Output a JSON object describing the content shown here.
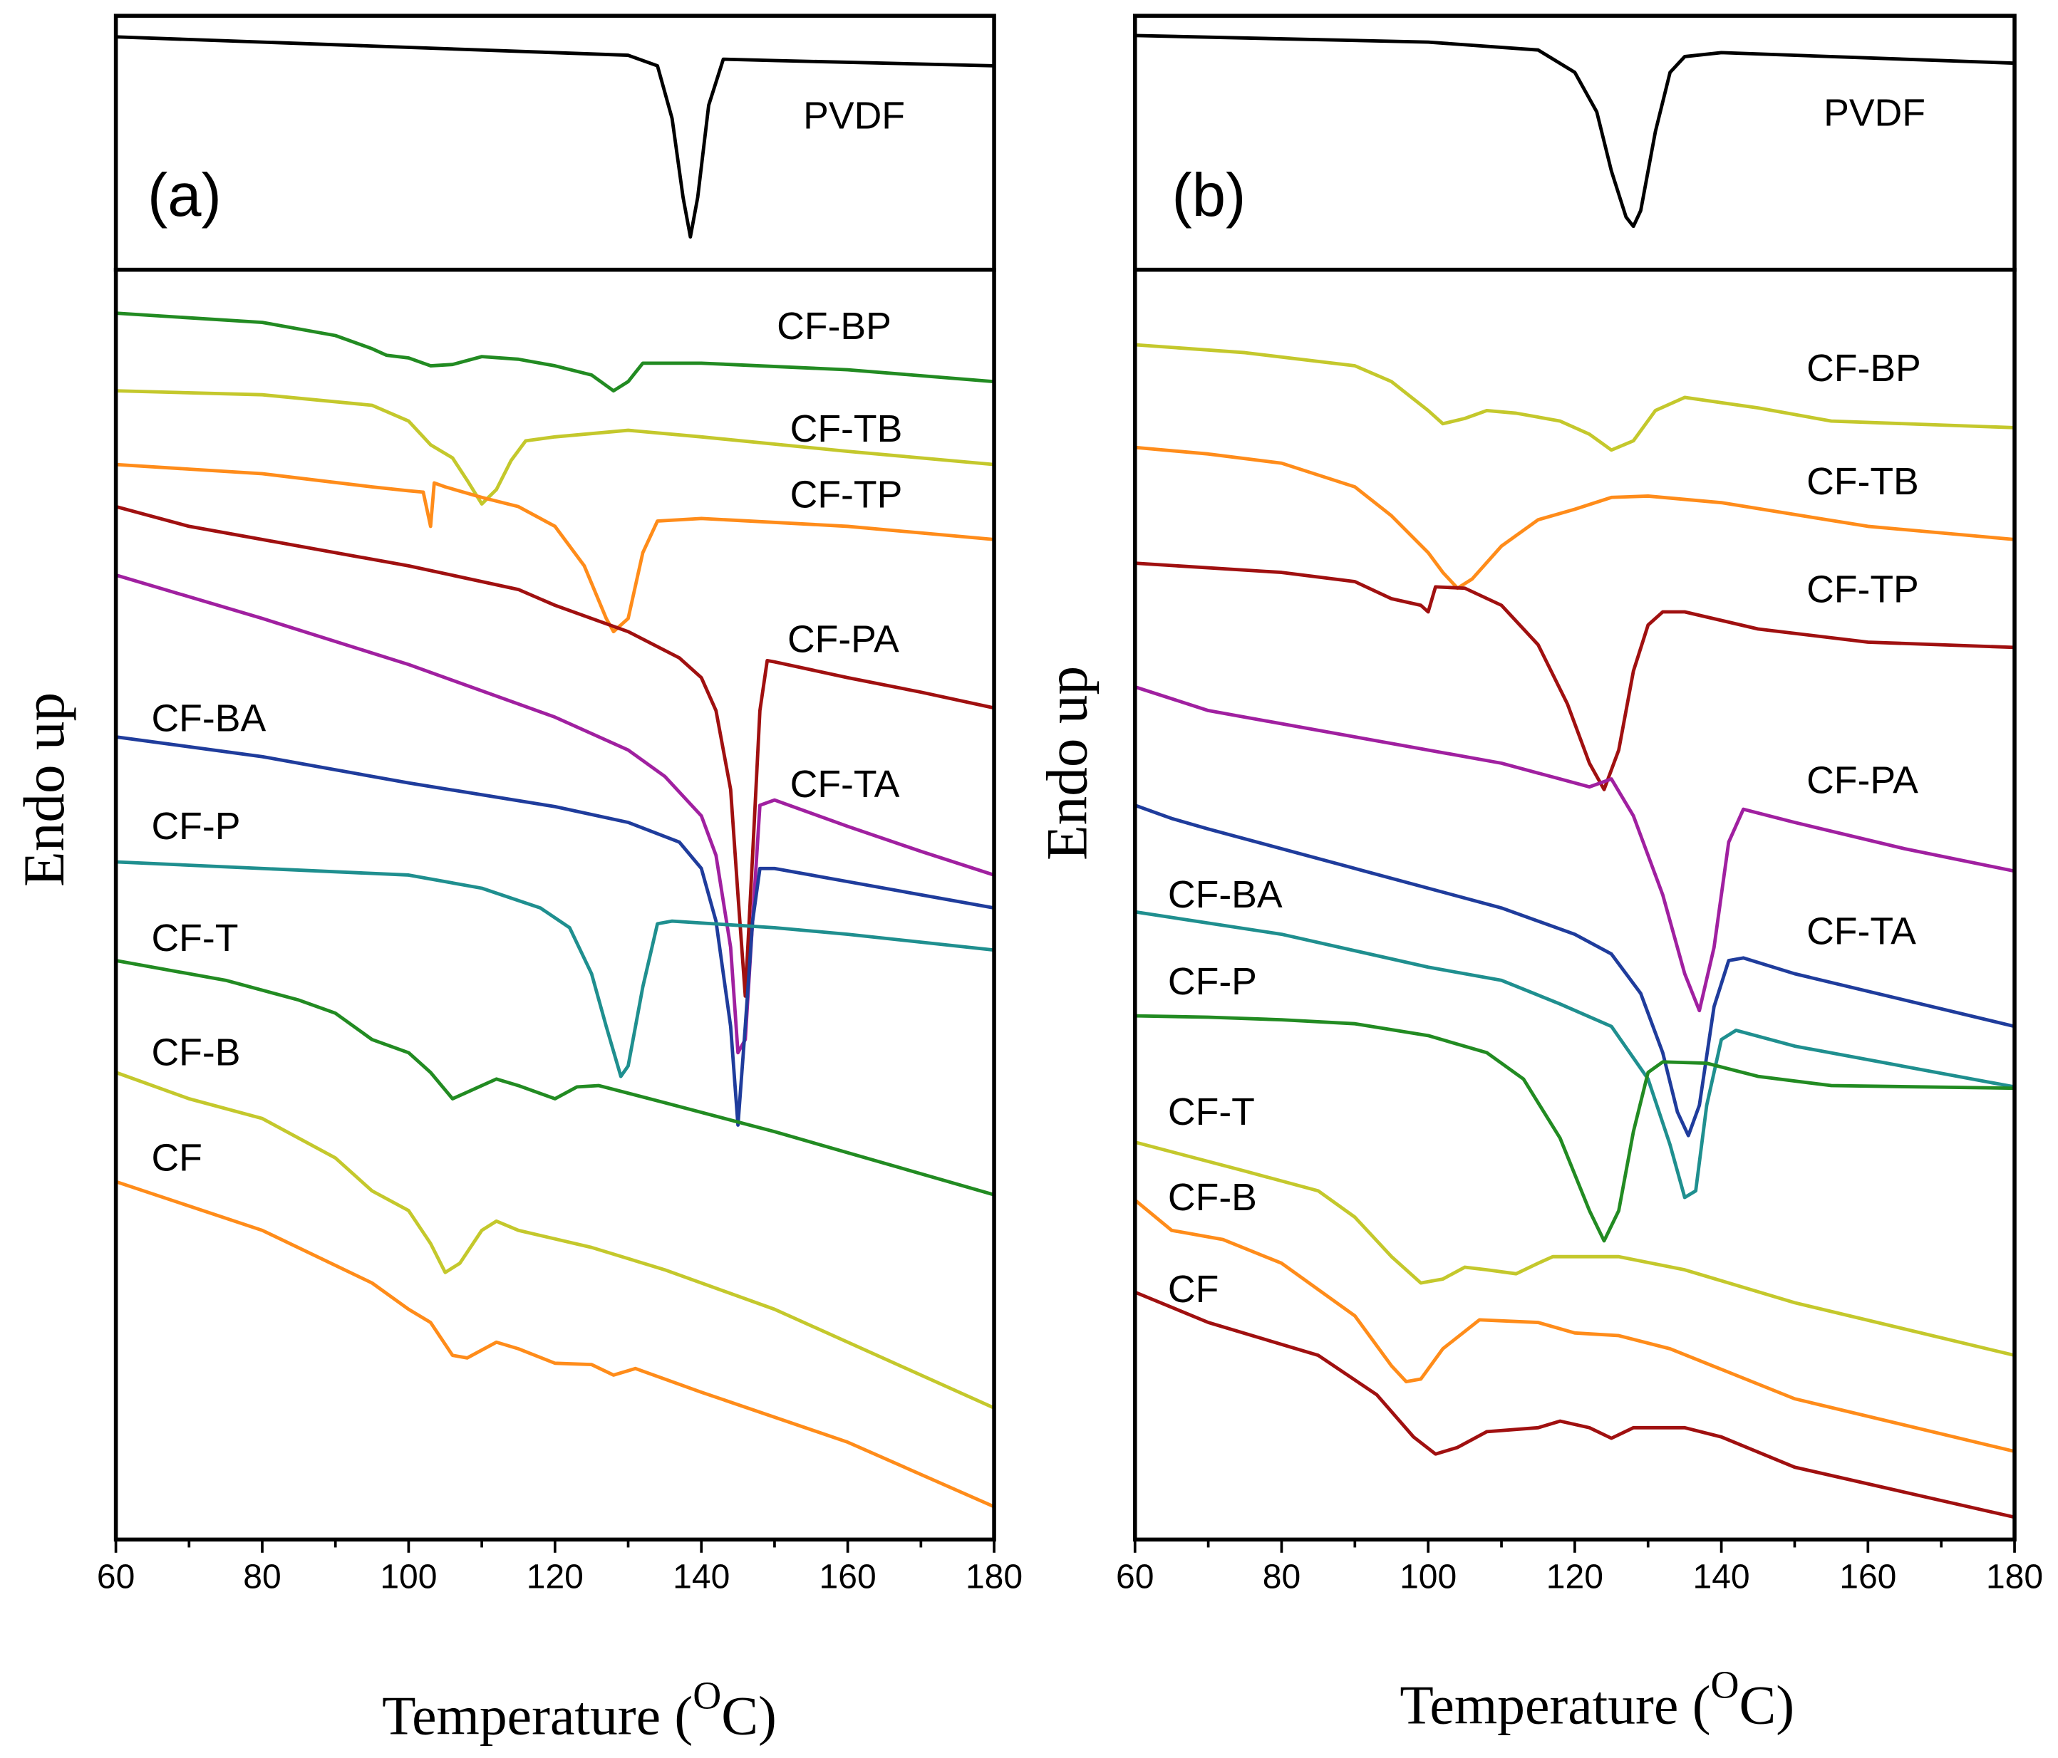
{
  "chart_data": [
    {
      "type": "line",
      "panel_label": "(a)",
      "xlim": [
        60,
        180
      ],
      "ylim": [
        0,
        193
      ],
      "series": [
        {
          "name": "PVDF",
          "color": "#000000",
          "x": [
            60,
            100,
            130,
            134,
            136,
            137.5,
            138.5,
            139.5,
            141,
            143,
            150,
            180
          ],
          "values": [
            177,
            169,
            163,
            155,
            115,
            55,
            25,
            55,
            125,
            160,
            159,
            155
          ]
        }
      ]
    },
    {
      "type": "line",
      "ylabel": "Endo up",
      "xlabel": [
        "Temperature (",
        "O",
        "C)"
      ],
      "xlim": [
        60,
        180
      ],
      "ylim": [
        0,
        965
      ],
      "xticks": [
        60,
        80,
        100,
        120,
        140,
        160,
        180
      ],
      "xminorticks": [
        70,
        90,
        110,
        130,
        150,
        170
      ],
      "series": [
        {
          "name": "CF-BP",
          "color": "#228b22",
          "x": [
            60,
            80,
            90,
            95,
            97,
            100,
            103,
            106,
            110,
            115,
            120,
            125,
            128,
            130,
            132,
            140,
            160,
            180
          ],
          "values": [
            932,
            925,
            915,
            905,
            900,
            898,
            892,
            893,
            899,
            897,
            892,
            885,
            873,
            880,
            894,
            894,
            889,
            880
          ]
        },
        {
          "name": "CF-TB",
          "color": "#c4c82c",
          "x": [
            60,
            80,
            95,
            100,
            103,
            106,
            108,
            110,
            112,
            114,
            116,
            120,
            130,
            140,
            160,
            180
          ],
          "values": [
            873,
            870,
            862,
            850,
            832,
            822,
            805,
            787,
            798,
            820,
            835,
            838,
            843,
            838,
            827,
            817
          ]
        },
        {
          "name": "CF-TP",
          "color": "#ff8c1a",
          "x": [
            60,
            80,
            95,
            100,
            102,
            103,
            103.5,
            105,
            110,
            115,
            120,
            124,
            127,
            128,
            130,
            132,
            134,
            140,
            160,
            180
          ],
          "values": [
            817,
            810,
            800,
            797,
            796,
            770,
            803,
            800,
            792,
            785,
            770,
            740,
            700,
            690,
            700,
            750,
            774,
            776,
            770,
            760
          ]
        },
        {
          "name": "CF-PA",
          "color": "#a01010",
          "x": [
            60,
            70,
            80,
            100,
            110,
            115,
            120,
            130,
            137,
            140,
            142,
            144,
            145,
            146,
            147,
            148,
            149,
            150,
            160,
            170,
            180
          ],
          "values": [
            785,
            770,
            760,
            740,
            728,
            722,
            710,
            690,
            670,
            655,
            630,
            570,
            490,
            413,
            520,
            630,
            668,
            667,
            655,
            644,
            632
          ]
        },
        {
          "name": "CF-TA",
          "color": "#a020a0",
          "x": [
            60,
            80,
            100,
            120,
            130,
            135,
            140,
            142,
            144,
            145,
            146,
            147,
            148,
            150,
            160,
            170,
            180
          ],
          "values": [
            733,
            700,
            665,
            625,
            600,
            580,
            550,
            520,
            450,
            370,
            380,
            470,
            558,
            562,
            542,
            523,
            505
          ]
        },
        {
          "name": "CF-BA",
          "color": "#1f3c9c",
          "x": [
            60,
            80,
            100,
            120,
            130,
            137,
            140,
            142,
            144,
            145,
            146,
            147,
            148,
            150,
            160,
            180
          ],
          "values": [
            610,
            595,
            575,
            557,
            545,
            530,
            510,
            470,
            390,
            315,
            390,
            470,
            510,
            510,
            500,
            480
          ]
        },
        {
          "name": "CF-P",
          "color": "#1f8f8f",
          "x": [
            60,
            80,
            100,
            110,
            118,
            122,
            125,
            127,
            129,
            130,
            132,
            134,
            136,
            150,
            160,
            180
          ],
          "values": [
            515,
            510,
            505,
            495,
            480,
            465,
            430,
            390,
            352,
            360,
            420,
            468,
            470,
            465,
            460,
            448
          ]
        },
        {
          "name": "CF-T",
          "color": "#228b22",
          "x": [
            60,
            75,
            85,
            90,
            95,
            100,
            103,
            106,
            108,
            112,
            115,
            120,
            123,
            126,
            135,
            150,
            180
          ],
          "values": [
            440,
            425,
            410,
            400,
            380,
            370,
            355,
            335,
            340,
            350,
            345,
            335,
            344,
            345,
            332,
            310,
            262
          ]
        },
        {
          "name": "CF-B",
          "color": "#c4c82c",
          "x": [
            60,
            70,
            80,
            90,
            95,
            100,
            103,
            105,
            107,
            110,
            112,
            115,
            125,
            135,
            150,
            180
          ],
          "values": [
            355,
            335,
            320,
            290,
            265,
            250,
            225,
            203,
            210,
            235,
            242,
            235,
            222,
            205,
            175,
            100
          ]
        },
        {
          "name": "CF",
          "color": "#ff8c1a",
          "x": [
            60,
            80,
            95,
            100,
            103,
            106,
            108,
            112,
            115,
            120,
            125,
            128,
            131,
            140,
            160,
            180
          ],
          "values": [
            272,
            235,
            195,
            175,
            165,
            140,
            138,
            150,
            145,
            134,
            133,
            125,
            130,
            112,
            74,
            25
          ]
        }
      ]
    },
    {
      "type": "line",
      "panel_label": "(b)",
      "xlim": [
        60,
        180
      ],
      "ylim": [
        0,
        193
      ],
      "series": [
        {
          "name": "PVDF",
          "color": "#000000",
          "x": [
            60,
            100,
            115,
            120,
            123,
            125,
            127,
            128,
            129,
            131,
            133,
            135,
            140,
            180
          ],
          "values": [
            178,
            173,
            167,
            150,
            120,
            75,
            40,
            33,
            45,
            105,
            150,
            162,
            165,
            157
          ]
        }
      ]
    },
    {
      "type": "line",
      "ylabel": "Endo up",
      "xlabel": [
        "Temperature (",
        "O",
        "C)"
      ],
      "xlim": [
        60,
        180
      ],
      "ylim": [
        0,
        965
      ],
      "xticks": [
        60,
        80,
        100,
        120,
        140,
        160,
        180
      ],
      "xminorticks": [
        70,
        90,
        110,
        130,
        150,
        170
      ],
      "series": [
        {
          "name": "CF-BP",
          "color": "#c4c82c",
          "x": [
            60,
            75,
            90,
            95,
            100,
            102,
            105,
            108,
            112,
            118,
            122,
            125,
            128,
            131,
            135,
            145,
            155,
            180
          ],
          "values": [
            908,
            902,
            892,
            880,
            858,
            848,
            852,
            858,
            856,
            850,
            840,
            828,
            835,
            858,
            868,
            860,
            850,
            845
          ]
        },
        {
          "name": "CF-TB",
          "color": "#ff8c1a",
          "x": [
            60,
            70,
            80,
            90,
            95,
            100,
            102,
            104,
            106,
            110,
            115,
            120,
            125,
            130,
            140,
            160,
            180
          ],
          "values": [
            830,
            825,
            818,
            800,
            778,
            750,
            735,
            723,
            730,
            755,
            775,
            783,
            792,
            793,
            788,
            770,
            760
          ]
        },
        {
          "name": "CF-TP",
          "color": "#a01010",
          "x": [
            60,
            80,
            90,
            95,
            99,
            100,
            101,
            105,
            110,
            115,
            119,
            122,
            124,
            126,
            128,
            130,
            132,
            135,
            145,
            160,
            180
          ],
          "values": [
            742,
            735,
            728,
            715,
            710,
            705,
            724,
            723,
            710,
            680,
            635,
            590,
            570,
            600,
            660,
            695,
            705,
            705,
            692,
            682,
            678
          ]
        },
        {
          "name": "CF-PA",
          "color": "#a020a0",
          "x": [
            60,
            70,
            90,
            110,
            118,
            122,
            125,
            128,
            132,
            135,
            137,
            139,
            141,
            143,
            150,
            165,
            180
          ],
          "values": [
            648,
            630,
            610,
            590,
            578,
            572,
            578,
            550,
            490,
            430,
            402,
            450,
            530,
            555,
            545,
            525,
            508
          ]
        },
        {
          "name": "CF-TA",
          "color": "#1f3c9c",
          "x": [
            60,
            65,
            70,
            90,
            110,
            120,
            125,
            129,
            132,
            134,
            135.5,
            137,
            139,
            141,
            143,
            150,
            180
          ],
          "values": [
            558,
            548,
            540,
            510,
            480,
            460,
            445,
            415,
            370,
            325,
            307,
            330,
            405,
            440,
            442,
            430,
            390
          ]
        },
        {
          "name": "CF-BA",
          "color": "#1f8f8f",
          "x": [
            60,
            80,
            100,
            103,
            110,
            118,
            125,
            130,
            133,
            135,
            136.5,
            138,
            140,
            142,
            150,
            180
          ],
          "values": [
            477,
            460,
            435,
            432,
            425,
            407,
            390,
            350,
            300,
            260,
            265,
            330,
            380,
            387,
            375,
            344
          ]
        },
        {
          "name": "CF-P",
          "color": "#228b22",
          "x": [
            60,
            70,
            80,
            90,
            100,
            108,
            113,
            118,
            122,
            124,
            126,
            128,
            130,
            132,
            138,
            145,
            155,
            180
          ],
          "values": [
            398,
            397,
            395,
            392,
            383,
            370,
            350,
            305,
            250,
            227,
            250,
            310,
            355,
            363,
            362,
            352,
            345,
            343
          ]
        },
        {
          "name": "CF-T",
          "color": "#c4c82c",
          "x": [
            60,
            75,
            85,
            90,
            95,
            99,
            102,
            105,
            108,
            112,
            115,
            117,
            126,
            135,
            150,
            180
          ],
          "values": [
            302,
            280,
            265,
            245,
            215,
            195,
            198,
            207,
            205,
            202,
            210,
            215,
            215,
            205,
            180,
            140
          ]
        },
        {
          "name": "CF-B",
          "color": "#ff8c1a",
          "x": [
            60,
            65,
            72,
            80,
            90,
            95,
            97,
            99,
            102,
            107,
            115,
            120,
            126,
            133,
            150,
            180
          ],
          "values": [
            258,
            235,
            228,
            210,
            170,
            132,
            120,
            122,
            145,
            167,
            165,
            157,
            155,
            145,
            107,
            67
          ]
        },
        {
          "name": "CF",
          "color": "#a01010",
          "x": [
            60,
            70,
            85,
            93,
            98,
            101,
            104,
            108,
            115,
            118,
            122,
            125,
            128,
            135,
            140,
            150,
            180
          ],
          "values": [
            188,
            165,
            140,
            110,
            78,
            65,
            70,
            82,
            85,
            90,
            85,
            77,
            85,
            85,
            78,
            55,
            17
          ]
        }
      ]
    }
  ]
}
